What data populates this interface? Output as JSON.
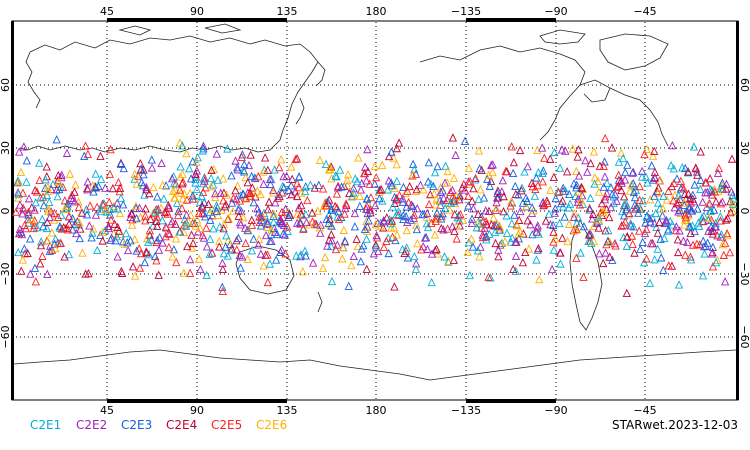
{
  "map": {
    "top_lon_ticks": [
      "45",
      "90",
      "135",
      "180",
      "−135",
      "−90",
      "−45"
    ],
    "bottom_lon_ticks": [
      "45",
      "90",
      "135",
      "180",
      "−135",
      "−90",
      "−45"
    ],
    "lat_ticks": [
      "60",
      "30",
      "0",
      "−30",
      "−60"
    ]
  },
  "legend": {
    "items": [
      {
        "label": "C2E1",
        "color": "#00b0d8"
      },
      {
        "label": "C2E2",
        "color": "#a020c0"
      },
      {
        "label": "C2E3",
        "color": "#1060e0"
      },
      {
        "label": "C2E4",
        "color": "#c00030"
      },
      {
        "label": "C2E5",
        "color": "#ff2020"
      },
      {
        "label": "C2E6",
        "color": "#ffb000"
      }
    ]
  },
  "stamp": "STARwet.2023-12-03"
}
